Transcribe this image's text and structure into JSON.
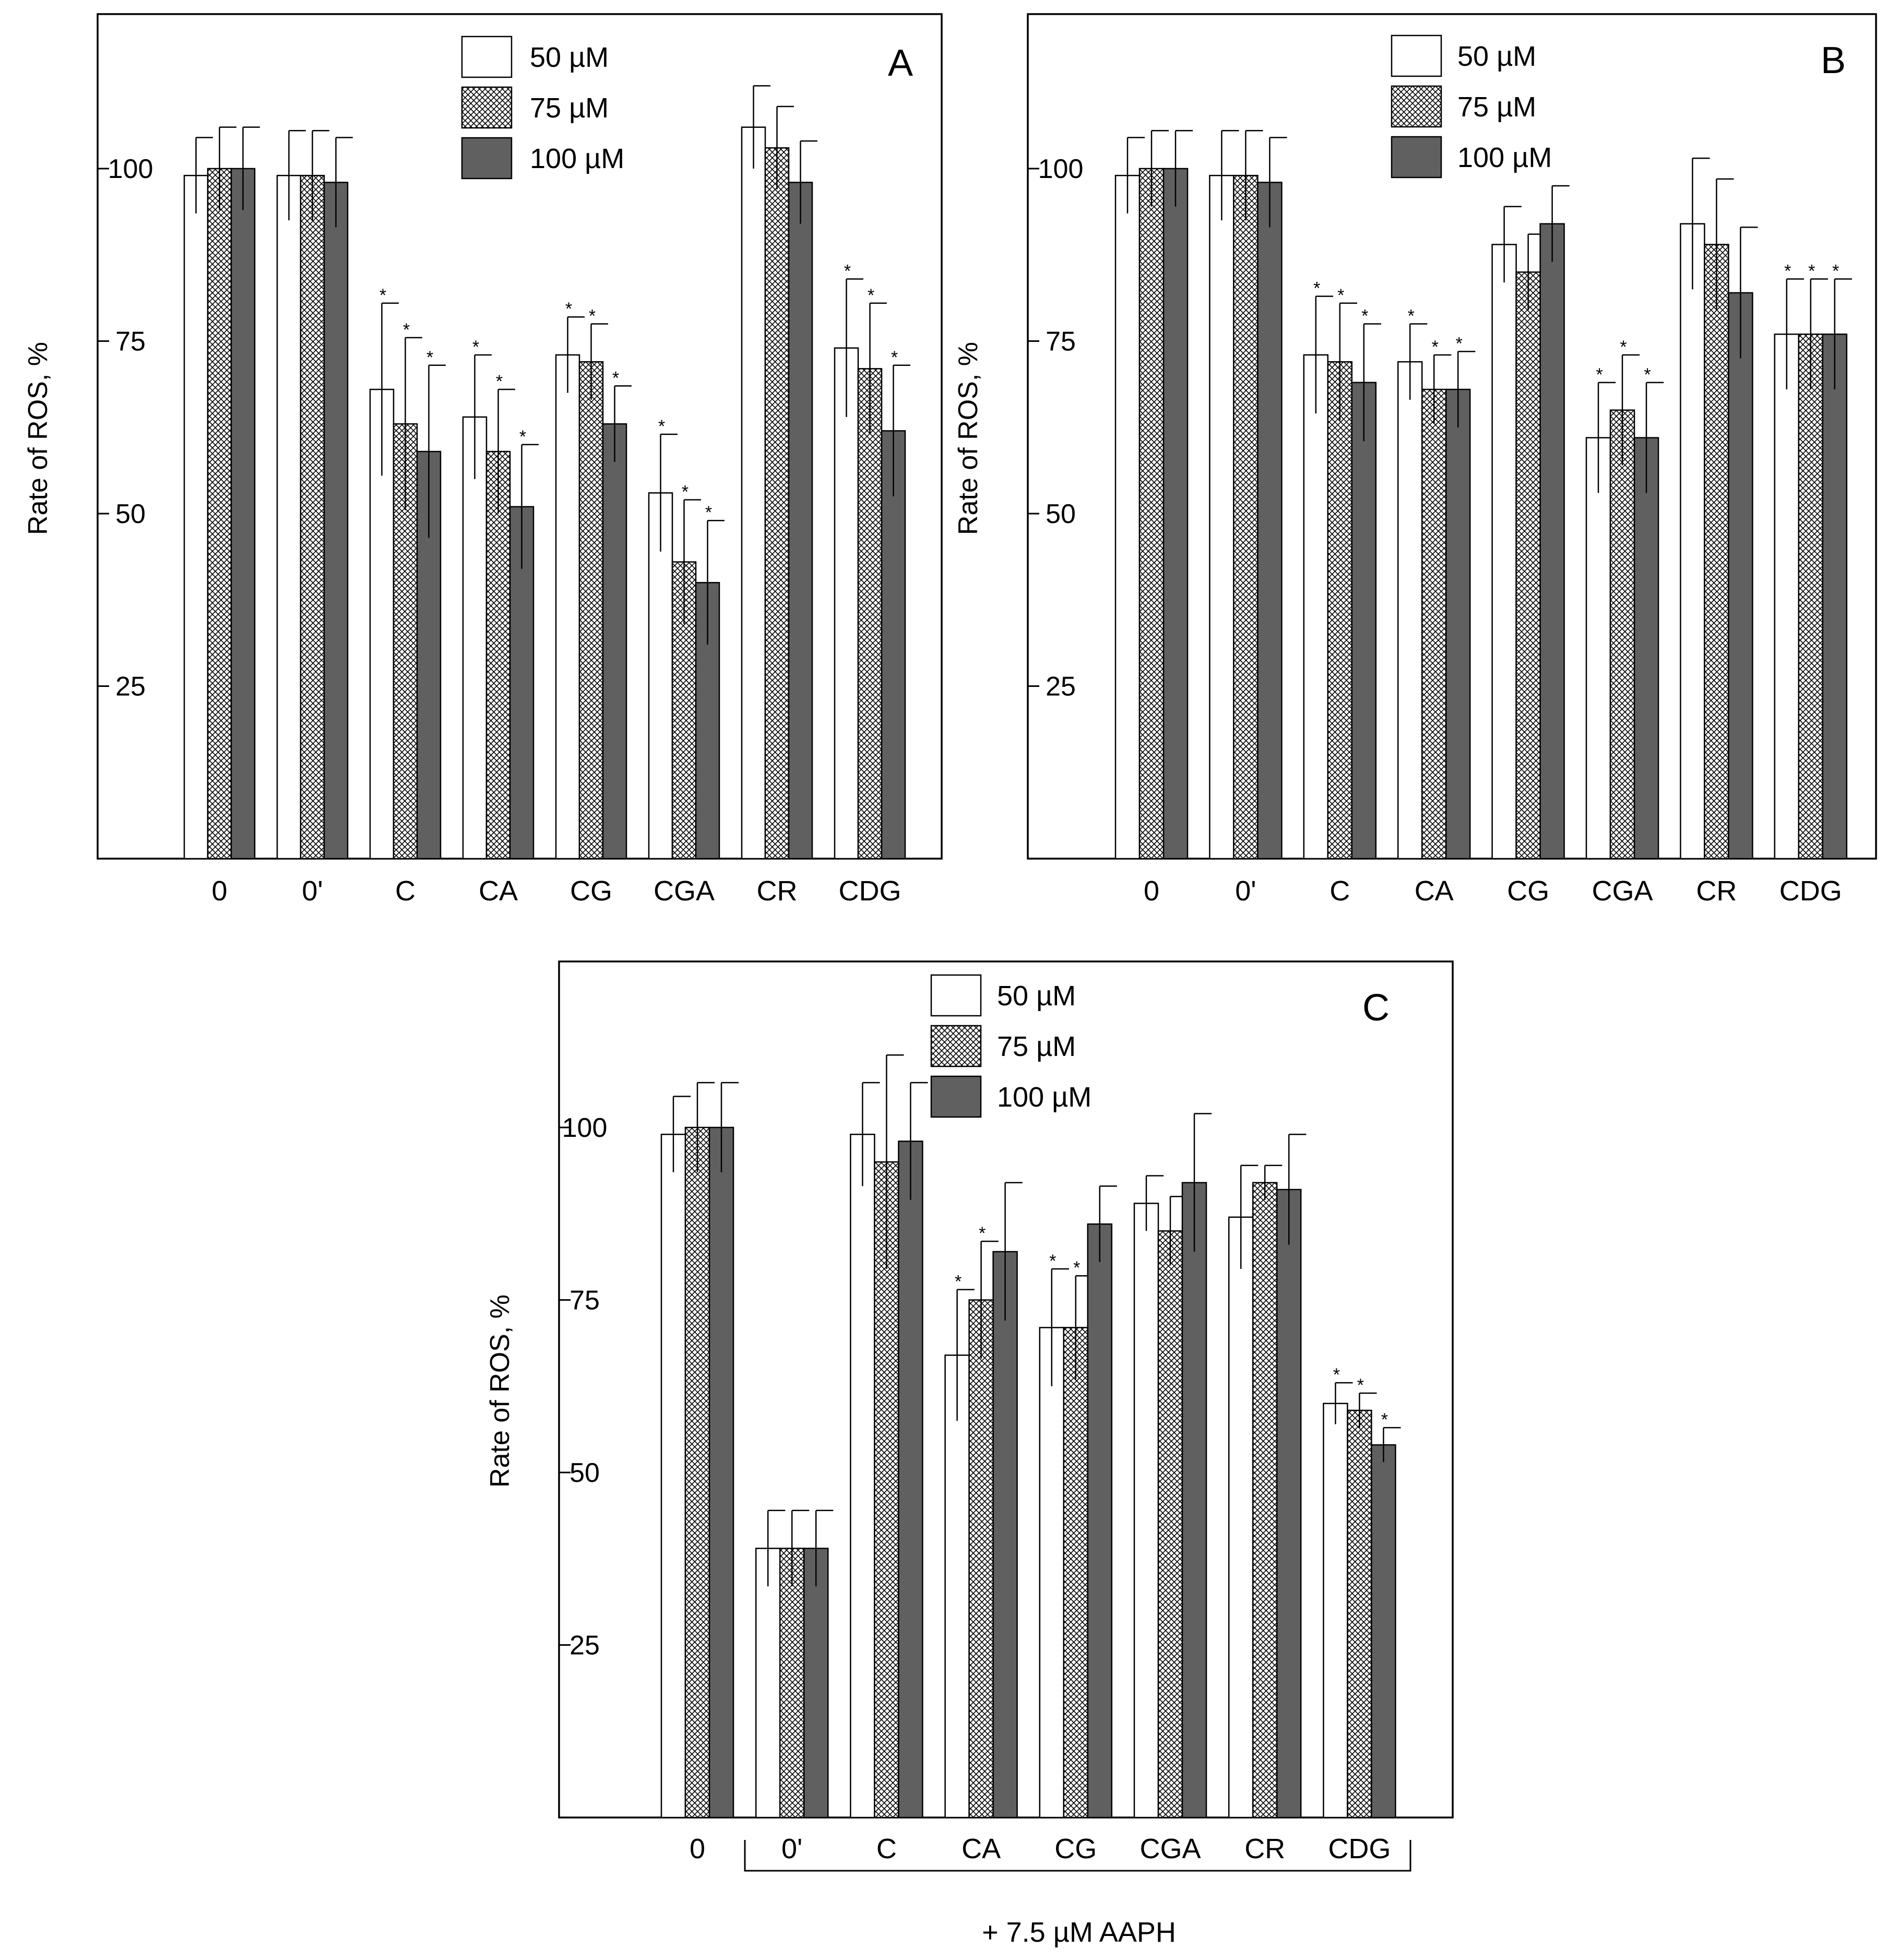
{
  "colors": {
    "50": "#ffffff",
    "75": "hatch",
    "100": "#606060",
    "stroke": "#000000"
  },
  "chart_data": [
    {
      "type": "bar",
      "panel_label": "A",
      "ylabel": "Rate of ROS, %",
      "yticks": [
        "25",
        "50",
        "75",
        "100"
      ],
      "ylim": [
        0,
        125
      ],
      "categories": [
        "0",
        "0'",
        "C",
        "CA",
        "CG",
        "CGA",
        "CR",
        "CDG"
      ],
      "series": [
        {
          "name": "50 µM",
          "values": [
            99,
            99,
            68,
            64,
            73,
            53,
            106,
            74
          ],
          "errors": [
            5.5,
            6.5,
            12.5,
            9,
            5.5,
            8.5,
            6,
            10
          ],
          "significant": [
            false,
            false,
            true,
            true,
            true,
            true,
            false,
            true
          ]
        },
        {
          "name": "75 µM",
          "values": [
            100,
            99,
            63,
            59,
            72,
            43,
            103,
            71
          ],
          "errors": [
            6,
            6.5,
            12.5,
            9,
            5.5,
            9,
            6,
            9.5
          ],
          "significant": [
            false,
            false,
            true,
            true,
            true,
            true,
            false,
            true
          ]
        },
        {
          "name": "100 µM",
          "values": [
            100,
            98,
            59,
            51,
            63,
            40,
            98,
            62
          ],
          "errors": [
            6,
            6.5,
            12.5,
            9,
            5.5,
            9,
            6,
            9.5
          ],
          "significant": [
            false,
            false,
            true,
            true,
            true,
            true,
            false,
            true
          ]
        }
      ],
      "significance_mark": "*",
      "bracket_label": ""
    },
    {
      "type": "bar",
      "panel_label": "B",
      "ylabel": "Rate of ROS, %",
      "yticks": [
        "25",
        "50",
        "75",
        "100"
      ],
      "ylim": [
        0,
        125
      ],
      "categories": [
        "0",
        "0'",
        "C",
        "CA",
        "CG",
        "CGA",
        "CR",
        "CDG"
      ],
      "series": [
        {
          "name": "50 µM",
          "values": [
            99,
            99,
            73,
            72,
            89,
            61,
            92,
            76
          ],
          "errors": [
            5.5,
            6.5,
            8.5,
            5.5,
            5.5,
            8,
            9.5,
            8
          ],
          "significant": [
            false,
            false,
            true,
            true,
            false,
            true,
            false,
            true
          ]
        },
        {
          "name": "75 µM",
          "values": [
            100,
            99,
            72,
            68,
            85,
            65,
            89,
            76
          ],
          "errors": [
            5.5,
            6.5,
            8.5,
            5,
            5.5,
            8,
            9.5,
            8
          ],
          "significant": [
            false,
            false,
            true,
            true,
            false,
            true,
            false,
            true
          ]
        },
        {
          "name": "100 µM",
          "values": [
            100,
            98,
            69,
            68,
            92,
            61,
            82,
            76
          ],
          "errors": [
            5.5,
            6.5,
            8.5,
            5.5,
            5.5,
            8,
            9.5,
            8
          ],
          "significant": [
            false,
            false,
            true,
            true,
            false,
            true,
            false,
            true
          ]
        }
      ],
      "significance_mark": "*",
      "bracket_label": ""
    },
    {
      "type": "bar",
      "panel_label": "C",
      "ylabel": "Rate of ROS, %",
      "yticks": [
        "25",
        "50",
        "75",
        "100"
      ],
      "ylim": [
        0,
        125
      ],
      "categories": [
        "0",
        "0'",
        "C",
        "CA",
        "CG",
        "CGA",
        "CR",
        "CDG"
      ],
      "series": [
        {
          "name": "50 µM",
          "values": [
            99,
            39,
            99,
            67,
            71,
            89,
            87,
            60
          ],
          "errors": [
            5.5,
            5.5,
            7.5,
            9.5,
            8.5,
            4,
            7.5,
            3
          ],
          "significant": [
            false,
            false,
            false,
            true,
            true,
            false,
            false,
            true
          ]
        },
        {
          "name": "75 µM",
          "values": [
            100,
            39,
            95,
            75,
            71,
            85,
            92,
            59
          ],
          "errors": [
            6.5,
            5.5,
            15.5,
            8.5,
            7.5,
            5,
            2.5,
            2.5
          ],
          "significant": [
            false,
            false,
            false,
            true,
            true,
            false,
            false,
            true
          ]
        },
        {
          "name": "100 µM",
          "values": [
            100,
            39,
            98,
            82,
            86,
            92,
            91,
            54
          ],
          "errors": [
            6.5,
            5.5,
            8.5,
            10,
            5.5,
            10,
            8,
            2.5
          ],
          "significant": [
            false,
            false,
            false,
            false,
            false,
            false,
            false,
            true
          ]
        }
      ],
      "significance_mark": "*",
      "bracket_label": "+ 7.5 µM AAPH"
    }
  ]
}
